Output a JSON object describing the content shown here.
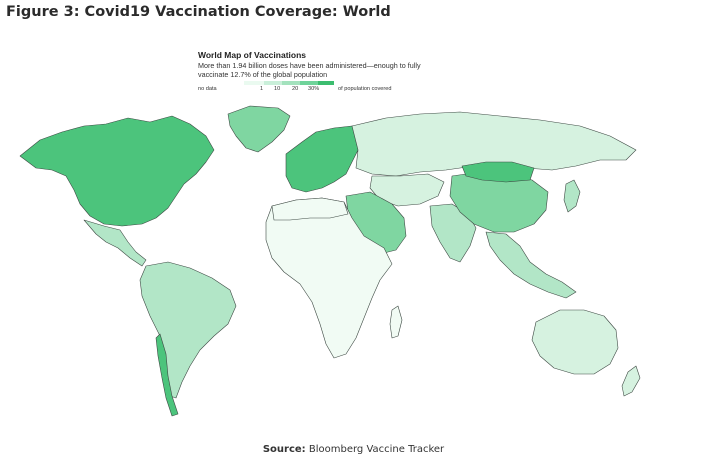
{
  "figure": {
    "title": "Figure 3: Covid19 Vaccination Coverage: World"
  },
  "map": {
    "title": "World Map of Vaccinations",
    "subtitle": "More than 1.94 billion doses have been administered—enough to fully vaccinate 12.7% of the global population",
    "legend": {
      "no_data_label": "no data",
      "ticks": [
        "1",
        "10",
        "20",
        "30%"
      ],
      "unit_label": "of population covered",
      "colors": [
        "#eafaf0",
        "#c9efd9",
        "#a3e2bd",
        "#6fd39a",
        "#3cbd6f"
      ]
    },
    "colors": {
      "no_data": "#e3e3e3",
      "lowest": "#f1fbf4",
      "low": "#d6f2e0",
      "medium": "#b2e6c7",
      "high": "#7fd6a1",
      "highest": "#4cc47c",
      "border": "#3e4a44"
    },
    "regions": [
      {
        "name": "north-america-usa-canada",
        "level": "highest"
      },
      {
        "name": "greenland",
        "level": "high"
      },
      {
        "name": "mexico",
        "level": "medium"
      },
      {
        "name": "south-america",
        "level": "medium"
      },
      {
        "name": "chile",
        "level": "highest"
      },
      {
        "name": "europe",
        "level": "highest"
      },
      {
        "name": "russia",
        "level": "low"
      },
      {
        "name": "africa",
        "level": "lowest"
      },
      {
        "name": "middle-east",
        "level": "high"
      },
      {
        "name": "india",
        "level": "medium"
      },
      {
        "name": "china",
        "level": "high"
      },
      {
        "name": "mongolia",
        "level": "highest"
      },
      {
        "name": "southeast-asia",
        "level": "medium"
      },
      {
        "name": "australia",
        "level": "low"
      }
    ]
  },
  "source": {
    "label": "Source:",
    "text": "Bloomberg Vaccine Tracker"
  }
}
